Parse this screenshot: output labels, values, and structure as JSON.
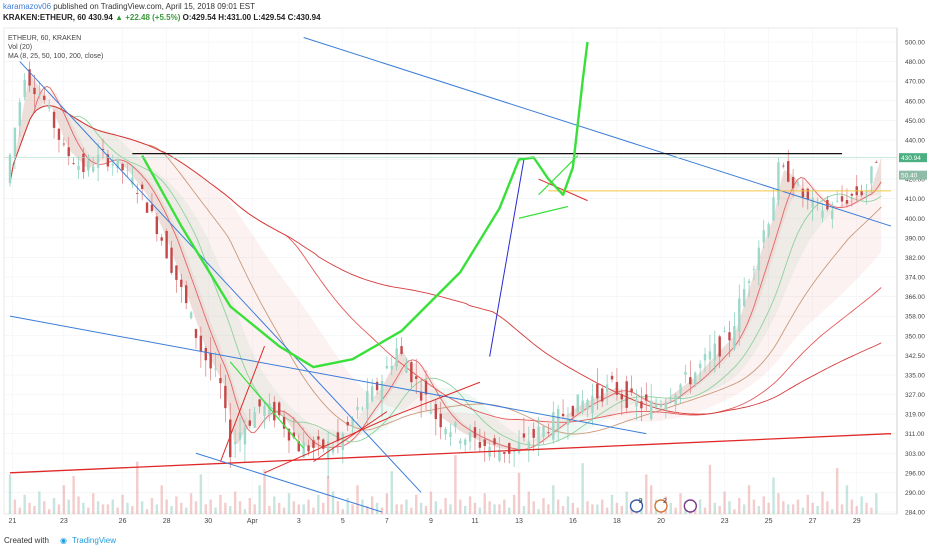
{
  "header": {
    "author": "karamazov06",
    "published": "published on TradingView.com, April 15, 2018 09:01 EST",
    "symbol": "KRAKEN:ETHEUR, 60",
    "last": "430.94",
    "change": "+22.48 (+5.5%)",
    "open": "O:429.54",
    "high": "H:431.00",
    "low": "L:429.54",
    "close": "C:430.94"
  },
  "legend": [
    "ETHEUR, 60, KRAKEN",
    "Vol (20)",
    "MA (8, 25, 50, 100, 200, close)"
  ],
  "footer": {
    "created": "Created with",
    "brand": "TradingView"
  },
  "badges": {
    "last_price": "430.94",
    "volume": "50.40"
  },
  "events": [
    "9",
    "2",
    ""
  ],
  "colors": {
    "up": "#26a69a",
    "down": "#ef5350",
    "green_draw": "#39e03a",
    "red_line": "#e02828",
    "blue_line": "#3b7dd8",
    "gold_line": "#f5c542"
  },
  "chart_data": {
    "type": "candlestick",
    "x_ticks": [
      "21",
      "23",
      "26",
      "28",
      "30",
      "Apr",
      "3",
      "5",
      "7",
      "9",
      "11",
      "13",
      "16",
      "18",
      "20",
      "23",
      "25",
      "27",
      "29"
    ],
    "y_ticks": [
      "500.00",
      "480.00",
      "470.00",
      "460.00",
      "450.00",
      "440.00",
      "430.00",
      "420.00",
      "410.00",
      "400.00",
      "390.00",
      "382.00",
      "374.00",
      "366.00",
      "358.00",
      "350.00",
      "342.50",
      "335.00",
      "327.00",
      "319.00",
      "311.00",
      "303.00",
      "296.00",
      "290.00",
      "284.00"
    ],
    "ylim": [
      284,
      500
    ],
    "close_path": [
      [
        0,
        418
      ],
      [
        2,
        474
      ],
      [
        4,
        460
      ],
      [
        6,
        435
      ],
      [
        8,
        425
      ],
      [
        10,
        432
      ],
      [
        12,
        425
      ],
      [
        14,
        412
      ],
      [
        16,
        390
      ],
      [
        18,
        368
      ],
      [
        20,
        345
      ],
      [
        22,
        330
      ],
      [
        23,
        305
      ],
      [
        24,
        312
      ],
      [
        26,
        322
      ],
      [
        28,
        318
      ],
      [
        30,
        306
      ],
      [
        32,
        305
      ],
      [
        34,
        307
      ],
      [
        36,
        320
      ],
      [
        38,
        330
      ],
      [
        40,
        345
      ],
      [
        42,
        332
      ],
      [
        44,
        318
      ],
      [
        46,
        312
      ],
      [
        48,
        308
      ],
      [
        50,
        305
      ],
      [
        52,
        304
      ],
      [
        54,
        310
      ],
      [
        56,
        316
      ],
      [
        58,
        322
      ],
      [
        60,
        326
      ],
      [
        62,
        330
      ],
      [
        64,
        324
      ],
      [
        66,
        322
      ],
      [
        68,
        328
      ],
      [
        70,
        334
      ],
      [
        72,
        342
      ],
      [
        74,
        350
      ],
      [
        76,
        375
      ],
      [
        78,
        400
      ],
      [
        79,
        425
      ],
      [
        80,
        422
      ],
      [
        82,
        408
      ],
      [
        84,
        404
      ],
      [
        86,
        410
      ],
      [
        88,
        415
      ],
      [
        89,
        431
      ]
    ],
    "volume_pattern": [
      6,
      9,
      4,
      12,
      7,
      5,
      14,
      8,
      3,
      10,
      6,
      18,
      9,
      5,
      11,
      7,
      4,
      13,
      8,
      6
    ]
  }
}
